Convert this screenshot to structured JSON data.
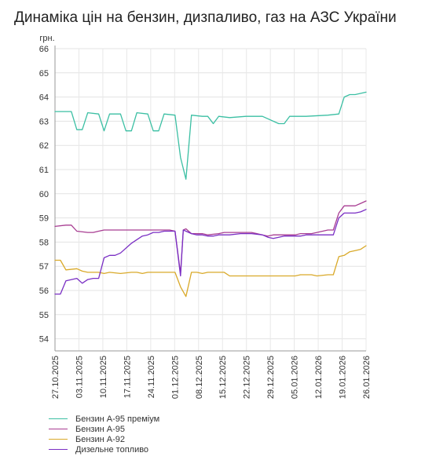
{
  "page": {
    "title": "Динаміка цін на бензин, дизпаливо, газ на АЗС України"
  },
  "chart_data": {
    "type": "line",
    "title": "Динаміка цін на бензин, дизпаливо, газ на АЗС України",
    "ylabel": "грн.",
    "ylim": [
      53.5,
      66
    ],
    "yticks": [
      54,
      55,
      56,
      57,
      58,
      59,
      60,
      61,
      62,
      63,
      64,
      65,
      66
    ],
    "xlabels": [
      "27.10.2025",
      "03.11.2025",
      "10.11.2025",
      "17.11.2025",
      "24.11.2025",
      "01.12.2025",
      "08.12.2025",
      "15.12.2025",
      "22.12.2025",
      "29.12.2025",
      "05.01.2026",
      "12.01.2026",
      "19.01.2026",
      "26.01.2026"
    ],
    "grid": true,
    "legend_position": "bottom-left",
    "series": [
      {
        "name": "Бензин А-95 преміум",
        "color": "#3bbfa3",
        "values": [
          [
            0,
            63.4
          ],
          [
            3,
            63.4
          ],
          [
            4,
            62.65
          ],
          [
            5,
            62.65
          ],
          [
            6,
            63.35
          ],
          [
            8,
            63.3
          ],
          [
            9,
            62.6
          ],
          [
            10,
            63.3
          ],
          [
            12,
            63.3
          ],
          [
            13,
            62.6
          ],
          [
            14,
            62.6
          ],
          [
            15,
            63.35
          ],
          [
            17,
            63.3
          ],
          [
            18,
            62.6
          ],
          [
            19,
            62.6
          ],
          [
            20,
            63.3
          ],
          [
            22,
            63.25
          ],
          [
            23,
            61.5
          ],
          [
            24,
            60.6
          ],
          [
            25,
            63.25
          ],
          [
            27,
            63.2
          ],
          [
            28,
            63.2
          ],
          [
            29,
            62.9
          ],
          [
            30,
            63.2
          ],
          [
            32,
            63.15
          ],
          [
            35,
            63.2
          ],
          [
            38,
            63.2
          ],
          [
            41,
            62.9
          ],
          [
            42,
            62.9
          ],
          [
            43,
            63.2
          ],
          [
            46,
            63.2
          ],
          [
            50,
            63.25
          ],
          [
            52,
            63.3
          ],
          [
            53,
            64
          ],
          [
            54,
            64.1
          ],
          [
            55,
            64.1
          ],
          [
            57,
            64.2
          ]
        ]
      },
      {
        "name": "Бензин А-95",
        "color": "#a83d92",
        "values": [
          [
            0,
            58.65
          ],
          [
            2,
            58.7
          ],
          [
            3,
            58.7
          ],
          [
            4,
            58.45
          ],
          [
            6,
            58.4
          ],
          [
            7,
            58.4
          ],
          [
            8,
            58.45
          ],
          [
            9,
            58.5
          ],
          [
            10,
            58.5
          ],
          [
            14,
            58.5
          ],
          [
            15,
            58.5
          ],
          [
            18,
            58.5
          ],
          [
            20,
            58.5
          ],
          [
            21,
            58.5
          ],
          [
            22,
            58.45
          ],
          [
            23,
            56.7
          ],
          [
            23.5,
            58.5
          ],
          [
            24,
            58.55
          ],
          [
            25,
            58.35
          ],
          [
            26,
            58.35
          ],
          [
            27,
            58.35
          ],
          [
            28,
            58.3
          ],
          [
            30,
            58.35
          ],
          [
            31,
            58.4
          ],
          [
            34,
            58.4
          ],
          [
            36,
            58.4
          ],
          [
            37,
            58.35
          ],
          [
            38,
            58.3
          ],
          [
            39,
            58.25
          ],
          [
            40,
            58.3
          ],
          [
            44,
            58.3
          ],
          [
            45,
            58.35
          ],
          [
            47,
            58.35
          ],
          [
            48,
            58.4
          ],
          [
            50,
            58.5
          ],
          [
            51,
            58.5
          ],
          [
            52,
            59.2
          ],
          [
            53,
            59.5
          ],
          [
            55,
            59.5
          ],
          [
            56,
            59.6
          ],
          [
            57,
            59.7
          ]
        ]
      },
      {
        "name": "Бензин А-92",
        "color": "#d9a929",
        "values": [
          [
            0,
            57.25
          ],
          [
            1,
            57.25
          ],
          [
            2,
            56.85
          ],
          [
            4,
            56.9
          ],
          [
            5,
            56.8
          ],
          [
            6,
            56.75
          ],
          [
            8,
            56.75
          ],
          [
            9,
            56.7
          ],
          [
            10,
            56.75
          ],
          [
            12,
            56.7
          ],
          [
            14,
            56.75
          ],
          [
            15,
            56.75
          ],
          [
            16,
            56.7
          ],
          [
            17,
            56.75
          ],
          [
            19,
            56.75
          ],
          [
            20,
            56.75
          ],
          [
            21,
            56.75
          ],
          [
            22,
            56.75
          ],
          [
            23,
            56.15
          ],
          [
            24,
            55.75
          ],
          [
            25,
            56.75
          ],
          [
            26,
            56.75
          ],
          [
            27,
            56.7
          ],
          [
            28,
            56.75
          ],
          [
            31,
            56.75
          ],
          [
            32,
            56.6
          ],
          [
            33,
            56.6
          ],
          [
            34,
            56.6
          ],
          [
            36,
            56.6
          ],
          [
            38,
            56.6
          ],
          [
            40,
            56.6
          ],
          [
            44,
            56.6
          ],
          [
            45,
            56.65
          ],
          [
            47,
            56.65
          ],
          [
            48,
            56.6
          ],
          [
            50,
            56.65
          ],
          [
            51,
            56.65
          ],
          [
            52,
            57.4
          ],
          [
            53,
            57.45
          ],
          [
            54,
            57.6
          ],
          [
            55,
            57.65
          ],
          [
            56,
            57.7
          ],
          [
            57,
            57.85
          ]
        ]
      },
      {
        "name": "Дизельне топливо",
        "color": "#7a2fc4",
        "values": [
          [
            0,
            55.85
          ],
          [
            1,
            55.85
          ],
          [
            2,
            56.4
          ],
          [
            4,
            56.5
          ],
          [
            5,
            56.3
          ],
          [
            6,
            56.45
          ],
          [
            7,
            56.5
          ],
          [
            8,
            56.5
          ],
          [
            9,
            57.35
          ],
          [
            10,
            57.45
          ],
          [
            11,
            57.45
          ],
          [
            12,
            57.55
          ],
          [
            14,
            57.95
          ],
          [
            15,
            58.1
          ],
          [
            16,
            58.25
          ],
          [
            17,
            58.3
          ],
          [
            18,
            58.4
          ],
          [
            19,
            58.4
          ],
          [
            20,
            58.45
          ],
          [
            21,
            58.45
          ],
          [
            22,
            58.45
          ],
          [
            23,
            56.6
          ],
          [
            23.5,
            58.5
          ],
          [
            24,
            58.45
          ],
          [
            25,
            58.35
          ],
          [
            26,
            58.3
          ],
          [
            27,
            58.3
          ],
          [
            28,
            58.25
          ],
          [
            29,
            58.25
          ],
          [
            30,
            58.3
          ],
          [
            32,
            58.3
          ],
          [
            34,
            58.35
          ],
          [
            36,
            58.35
          ],
          [
            38,
            58.3
          ],
          [
            39,
            58.2
          ],
          [
            40,
            58.15
          ],
          [
            41,
            58.2
          ],
          [
            42,
            58.25
          ],
          [
            44,
            58.25
          ],
          [
            45,
            58.25
          ],
          [
            46,
            58.3
          ],
          [
            48,
            58.3
          ],
          [
            49,
            58.3
          ],
          [
            50,
            58.3
          ],
          [
            51,
            58.3
          ],
          [
            52,
            59
          ],
          [
            53,
            59.2
          ],
          [
            54,
            59.2
          ],
          [
            55,
            59.2
          ],
          [
            56,
            59.25
          ],
          [
            57,
            59.35
          ]
        ]
      }
    ]
  }
}
